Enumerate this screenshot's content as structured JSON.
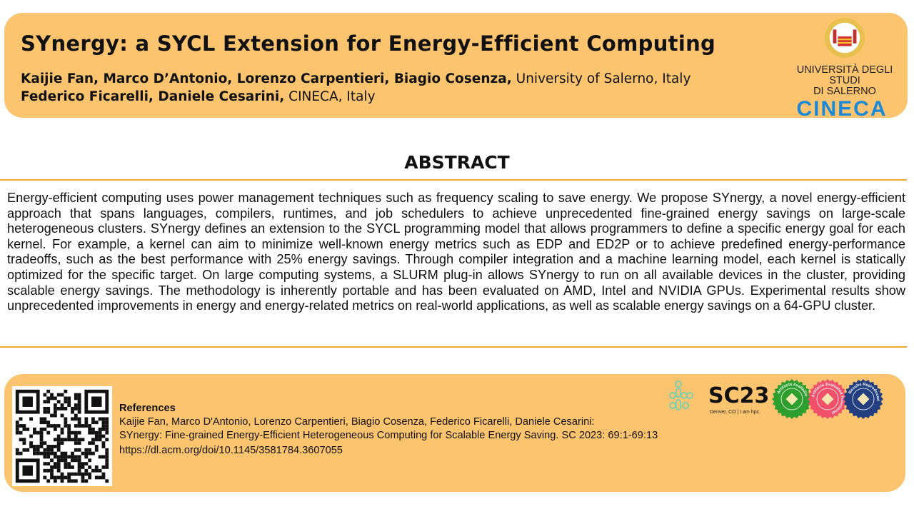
{
  "header": {
    "title": "SYnergy: a SYCL Extension for Energy-Efficient Computing",
    "authors_line1_bold": "Kaijie Fan, Marco D’Antonio, Lorenzo Carpentieri, Biagio Cosenza,",
    "authors_line1_affil": " University of Salerno, Italy",
    "authors_line2_bold": "Federico Ficarelli, Daniele Cesarini,",
    "authors_line2_affil": " CINECA, Italy",
    "logos": {
      "unisa_line1": "UNIVERSITÀ DEGLI STUDI",
      "unisa_line2": "DI SALERNO",
      "cineca": "CINECA"
    }
  },
  "abstract": {
    "heading": "ABSTRACT",
    "text": "Energy-efficient computing uses power management techniques such as frequency scaling to save energy. We propose SYnergy, a novel energy-efficient approach that spans languages, compilers, runtimes, and job schedulers to achieve unprecedented fine-grained energy savings on large-scale heterogeneous clusters. SYnergy defines an extension to the SYCL programming model that allows programmers to define a specific energy goal for each kernel. For example, a kernel can aim to minimize well-known energy metrics such as EDP and ED2P or to achieve predefined energy-performance tradeoffs, such as the best performance with 25% energy savings. Through compiler integration and a machine learning model, each kernel is statically optimized for the specific target. On large computing systems, a SLURM plug-in allows SYnergy to run on all available devices in the cluster, providing scalable energy savings. The methodology is inherently portable and has been evaluated on AMD, Intel and NVIDIA GPUs. Experimental results show unprecedented improvements in energy and energy-related metrics on real-world applications, as well as scalable energy savings on a 64-GPU cluster."
  },
  "footer": {
    "references_heading": "References",
    "ref_authors": "Kaijie Fan, Marco D'Antonio, Lorenzo Carpentieri, Biagio Cosenza, Federico Ficarelli, Daniele Cesarini:",
    "ref_title": "SYnergy: Fine-grained Energy-Efficient Heterogeneous Computing for Scalable Energy Saving. SC 2023: 69:1-69:13",
    "ref_url": "https://dl.acm.org/doi/10.1145/3581784.3607055",
    "sc_logo": "SC23",
    "sc_tagline": "Denver, CO | I am hpc.",
    "badges": [
      {
        "label": "Artifacts Available",
        "color": "#2e9e2e"
      },
      {
        "label": "Artifacts Evaluated Functional",
        "color": "#f0506a"
      },
      {
        "label": "Results Reproduced",
        "color": "#233f80"
      }
    ]
  },
  "colors": {
    "panel": "#fcc46f",
    "rule": "#f0a830",
    "cineca": "#1a8ad8"
  }
}
